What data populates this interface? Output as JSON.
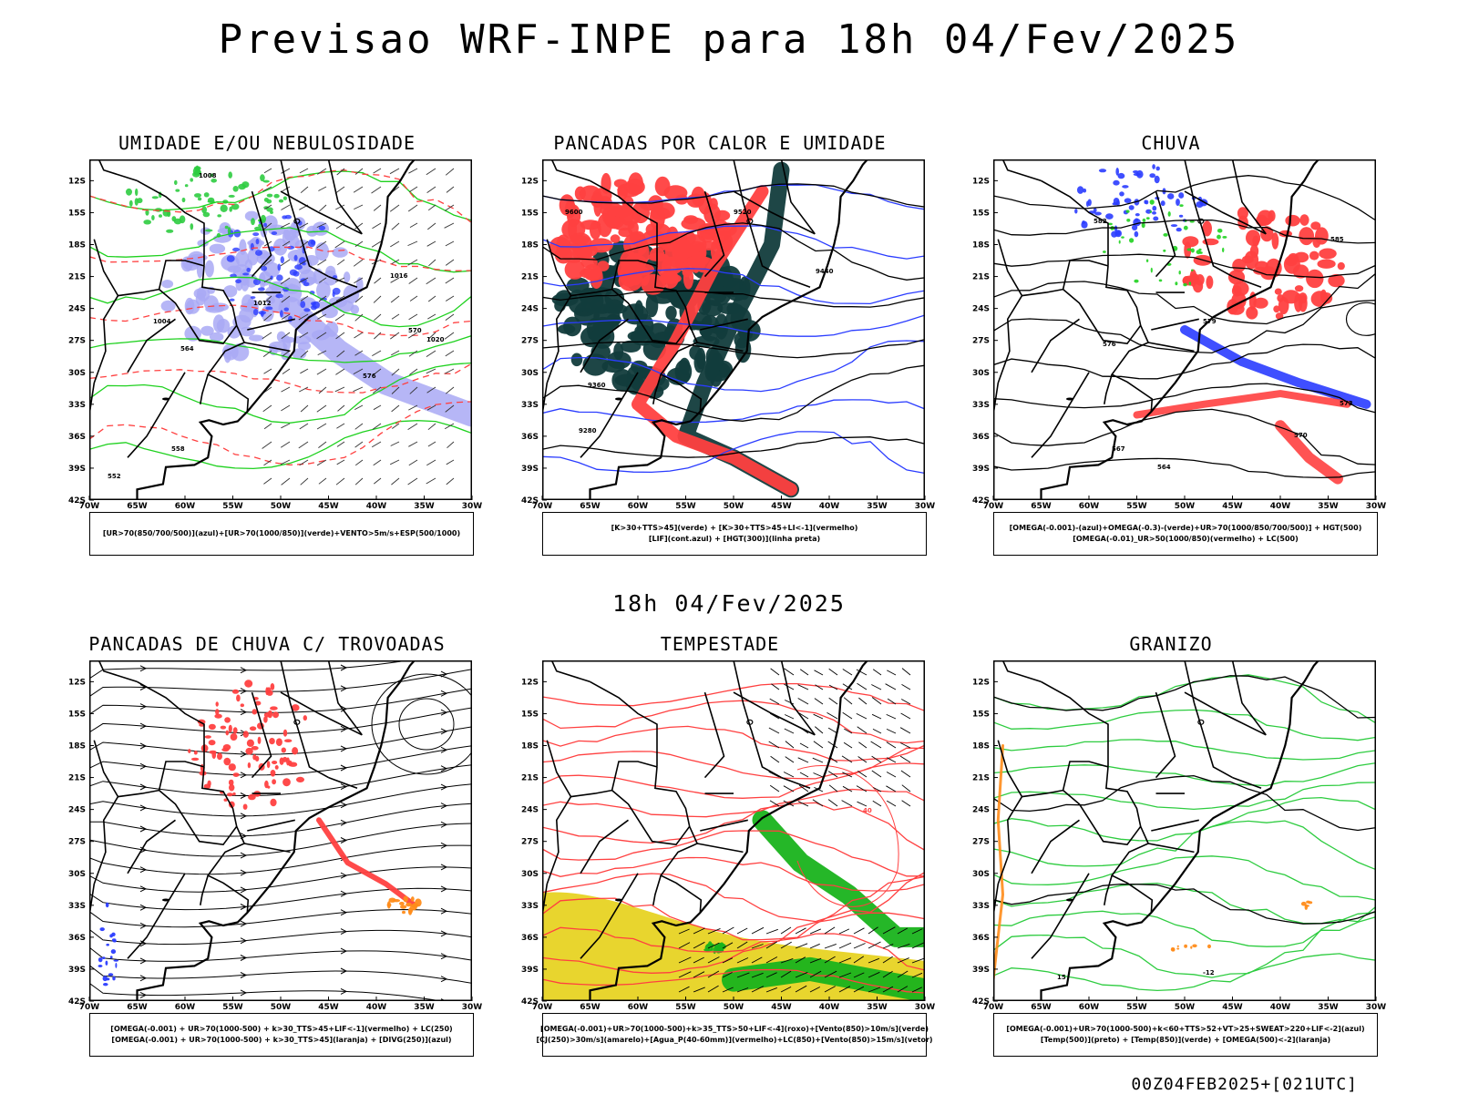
{
  "header": {
    "title": "Previsao WRF-INPE  para 18h 04/Fev/2025",
    "subtitle": "18h 04/Fev/2025",
    "stamp": "00Z04FEB2025+[021UTC]"
  },
  "axes": {
    "lat_labels": [
      "12S",
      "15S",
      "18S",
      "21S",
      "24S",
      "27S",
      "30S",
      "33S",
      "36S",
      "39S",
      "42S"
    ],
    "lon_labels": [
      "70W",
      "65W",
      "60W",
      "55W",
      "50W",
      "45W",
      "40W",
      "35W",
      "30W"
    ]
  },
  "colors": {
    "red": "#ff4040",
    "green": "#1fd11f",
    "blue": "#2a3cff",
    "lightblue": "#a9a9f5",
    "darkteal": "#123c3c",
    "yellow": "#e8d52e",
    "orange": "#ff8c1a"
  },
  "chart_data": [
    {
      "type": "heatmap",
      "title": "UMIDADE E/OU NEBULOSIDADE",
      "legend": [
        "[UR>70(850/700/500)](azul)+[UR>70(1000/850)](verde)+VENTO>5m/s+ESP(500/1000)"
      ],
      "contour_labels": [
        "1008",
        "1004",
        "1012",
        "1016",
        "1020",
        "576",
        "570",
        "564",
        "558",
        "552"
      ],
      "lon_range": [
        -70,
        -30
      ],
      "lat_range": [
        -42,
        -10
      ]
    },
    {
      "type": "heatmap",
      "title": "PANCADAS POR CALOR E UMIDADE",
      "legend": [
        "[K>30+TTS>45](verde) + [K>30+TTS>45+LI<-1](vermelho)",
        "[LIF](cont.azul) + [HGT(300)](linha preta)"
      ],
      "contour_labels": [
        "9600",
        "9520",
        "9440",
        "9360",
        "9280"
      ],
      "lon_range": [
        -70,
        -30
      ],
      "lat_range": [
        -42,
        -10
      ]
    },
    {
      "type": "heatmap",
      "title": "CHUVA",
      "legend": [
        "[OMEGA(-0.001)-(azul)+OMEGA(-0.3)-(verde)+UR>70(1000/850/700/500)] + HGT(500)",
        "[OMEGA(-0.01)_UR>50(1000/850)(vermelho) + LC(500)"
      ],
      "contour_labels": [
        "582",
        "585",
        "579",
        "576",
        "573",
        "570",
        "567",
        "564"
      ],
      "lon_range": [
        -70,
        -30
      ],
      "lat_range": [
        -42,
        -10
      ]
    },
    {
      "type": "heatmap",
      "title": "PANCADAS DE CHUVA C/ TROVOADAS",
      "legend": [
        "[OMEGA(-0.001) + UR>70(1000-500) + k>30_TTS>45+LIF<-1](vermelho) + LC(250)",
        "[OMEGA(-0.001) + UR>70(1000-500) + k>30_TTS>45](laranja) + [DIVG(250)](azul)"
      ],
      "contour_labels": [],
      "lon_range": [
        -70,
        -30
      ],
      "lat_range": [
        -42,
        -10
      ]
    },
    {
      "type": "heatmap",
      "title": "TEMPESTADE",
      "legend": [
        "[OMEGA(-0.001)+UR>70(1000-500)+k>35_TTS>50+LIF<-4](roxo)+[Vento(850)>10m/s](verde)",
        "[CJ(250)>30m/s](amarelo)+[Agua_P(40-60mm)](vermelho)+LC(850)+[Vento(850)>15m/s](vetor)"
      ],
      "contour_labels": [
        "40"
      ],
      "lon_range": [
        -70,
        -30
      ],
      "lat_range": [
        -42,
        -10
      ]
    },
    {
      "type": "heatmap",
      "title": "GRANIZO",
      "legend": [
        "[OMEGA(-0.001)+UR>70(1000-500)+k<60+TTS>52+VT>25+SWEAT>220+LIF<-2](azul)",
        "[Temp(500)](preto) + [Temp(850)](verde) + [OMEGA(500)<-2](laranja)"
      ],
      "contour_labels": [
        "-12",
        "15"
      ],
      "lon_range": [
        -70,
        -30
      ],
      "lat_range": [
        -42,
        -10
      ]
    }
  ]
}
